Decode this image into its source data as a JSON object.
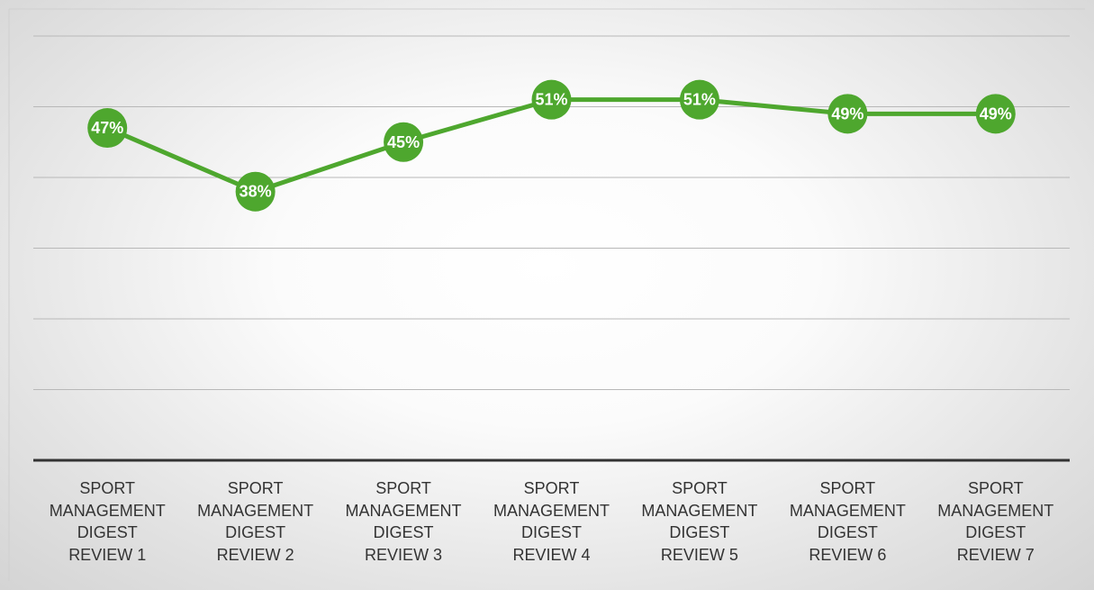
{
  "chart_data": {
    "type": "line",
    "categories": [
      "SPORT MANAGEMENT DIGEST REVIEW 1",
      "SPORT MANAGEMENT DIGEST REVIEW 2",
      "SPORT MANAGEMENT DIGEST REVIEW 3",
      "SPORT MANAGEMENT DIGEST REVIEW 4",
      "SPORT MANAGEMENT DIGEST REVIEW 5",
      "SPORT MANAGEMENT DIGEST REVIEW 6",
      "SPORT MANAGEMENT DIGEST REVIEW 7"
    ],
    "values": [
      47,
      38,
      45,
      51,
      51,
      49,
      49
    ],
    "value_labels": [
      "47%",
      "38%",
      "45%",
      "51%",
      "51%",
      "49%",
      "49%"
    ],
    "color": "#4ea72e",
    "ylim": [
      0,
      60
    ],
    "yticks": [
      0,
      10,
      20,
      30,
      40,
      50,
      60
    ],
    "grid": true
  }
}
